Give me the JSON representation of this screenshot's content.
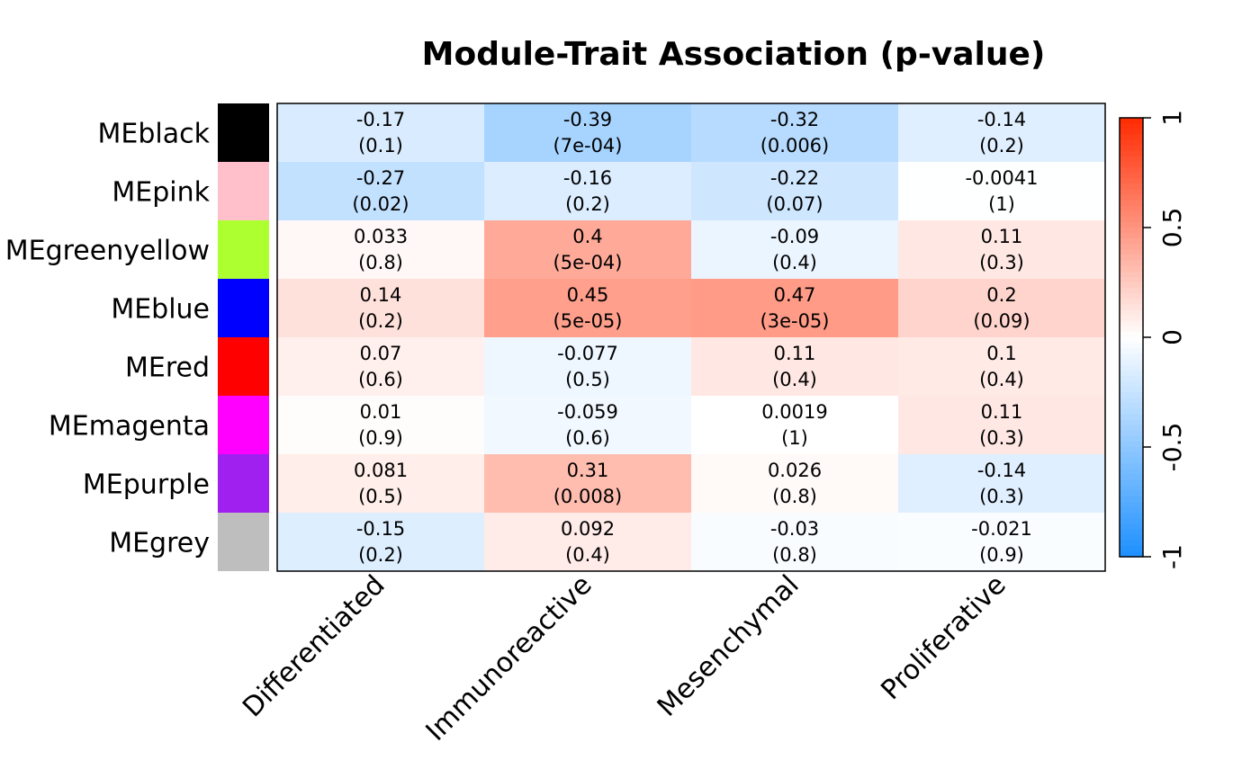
{
  "chart_data": {
    "type": "heatmap",
    "title": "Module-Trait Association (p-value)",
    "rows": [
      {
        "label": "MEblack",
        "color": "#000000"
      },
      {
        "label": "MEpink",
        "color": "#FFC0CB"
      },
      {
        "label": "MEgreenyellow",
        "color": "#ADFF2F"
      },
      {
        "label": "MEblue",
        "color": "#0000FF"
      },
      {
        "label": "MEred",
        "color": "#FF0000"
      },
      {
        "label": "MEmagenta",
        "color": "#FF00FF"
      },
      {
        "label": "MEpurple",
        "color": "#A020F0"
      },
      {
        "label": "MEgrey",
        "color": "#BEBEBE"
      }
    ],
    "columns": [
      "Differentiated",
      "Immunoreactive",
      "Mesenchymal",
      "Proliferative"
    ],
    "values": [
      [
        -0.17,
        -0.39,
        -0.32,
        -0.14
      ],
      [
        -0.27,
        -0.16,
        -0.22,
        -0.0041
      ],
      [
        0.033,
        0.4,
        -0.09,
        0.11
      ],
      [
        0.14,
        0.45,
        0.47,
        0.2
      ],
      [
        0.07,
        -0.077,
        0.11,
        0.1
      ],
      [
        0.01,
        -0.059,
        0.0019,
        0.11
      ],
      [
        0.081,
        0.31,
        0.026,
        -0.14
      ],
      [
        -0.15,
        0.092,
        -0.03,
        -0.021
      ]
    ],
    "value_labels": [
      [
        "-0.17",
        "-0.39",
        "-0.32",
        "-0.14"
      ],
      [
        "-0.27",
        "-0.16",
        "-0.22",
        "-0.0041"
      ],
      [
        "0.033",
        "0.4",
        "-0.09",
        "0.11"
      ],
      [
        "0.14",
        "0.45",
        "0.47",
        "0.2"
      ],
      [
        "0.07",
        "-0.077",
        "0.11",
        "0.1"
      ],
      [
        "0.01",
        "-0.059",
        "0.0019",
        "0.11"
      ],
      [
        "0.081",
        "0.31",
        "0.026",
        "-0.14"
      ],
      [
        "-0.15",
        "0.092",
        "-0.03",
        "-0.021"
      ]
    ],
    "pvalue_labels": [
      [
        "(0.1)",
        "(7e-04)",
        "(0.006)",
        "(0.2)"
      ],
      [
        "(0.02)",
        "(0.2)",
        "(0.07)",
        "(1)"
      ],
      [
        "(0.8)",
        "(5e-04)",
        "(0.4)",
        "(0.3)"
      ],
      [
        "(0.2)",
        "(5e-05)",
        "(3e-05)",
        "(0.09)"
      ],
      [
        "(0.6)",
        "(0.5)",
        "(0.4)",
        "(0.4)"
      ],
      [
        "(0.9)",
        "(0.6)",
        "(1)",
        "(0.3)"
      ],
      [
        "(0.5)",
        "(0.008)",
        "(0.8)",
        "(0.3)"
      ],
      [
        "(0.2)",
        "(0.4)",
        "(0.8)",
        "(0.9)"
      ]
    ],
    "color_scale": {
      "min": -1,
      "max": 1,
      "low_color": "#1E90FF",
      "mid_color": "#FFFFFF",
      "high_color": "#FF2A00",
      "ticks": [
        -1,
        -0.5,
        0,
        0.5,
        1
      ],
      "tick_labels": [
        "-1",
        "-0.5",
        "0",
        "0.5",
        "1"
      ]
    }
  }
}
